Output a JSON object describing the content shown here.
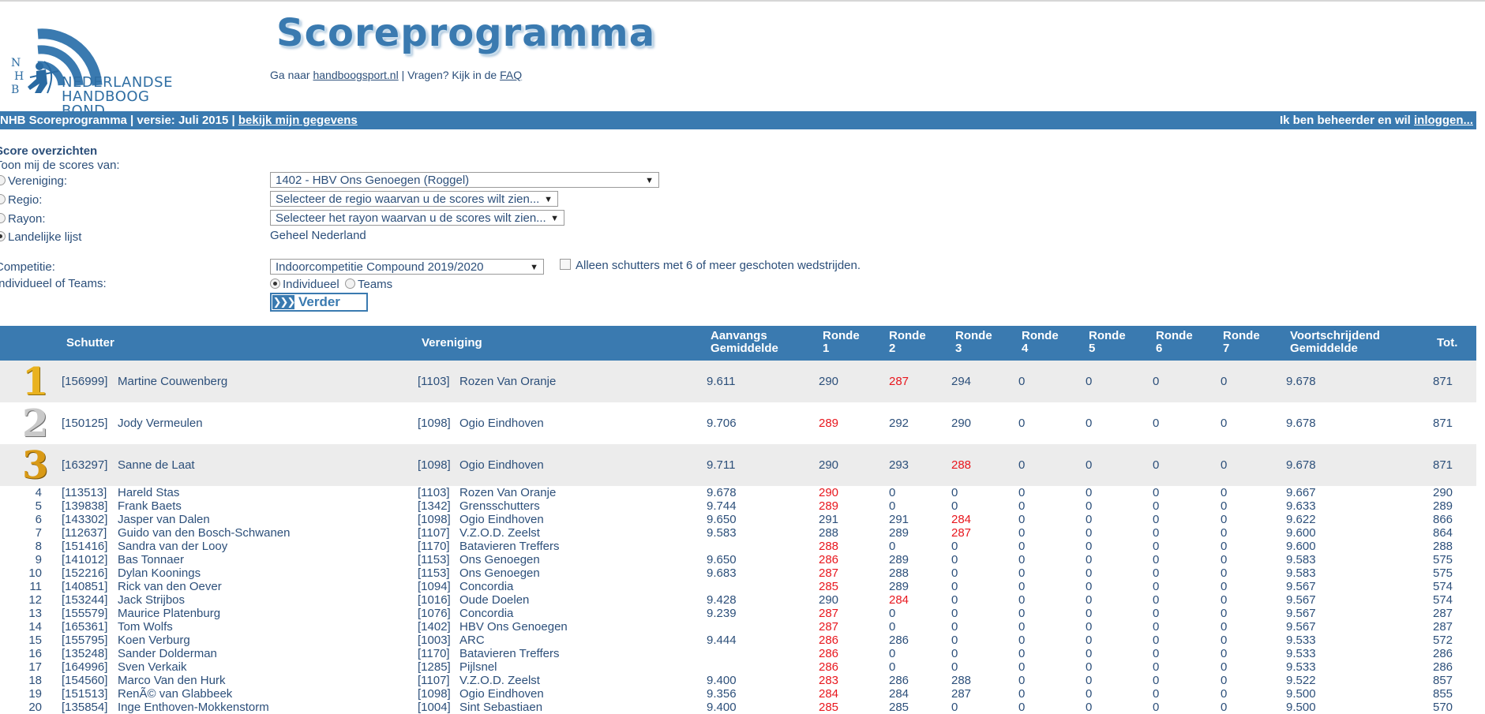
{
  "header": {
    "title": "Scoreprogramma",
    "logo_text_line1": "NEDERLANDSE",
    "logo_text_line2": "HANDBOOG BOND",
    "logo_letters": [
      "N",
      "H",
      "B"
    ],
    "goto_prefix": "Ga naar ",
    "goto_link": "handboogsport.nl",
    "goto_middle": " | Vragen? Kijk in de ",
    "faq_link": "FAQ"
  },
  "bar": {
    "left_text": "NHB Scoreprogramma | versie: Juli 2015 | ",
    "left_link": "bekijk mijn gegevens",
    "right_text": "Ik ben beheerder en wil ",
    "right_link": "inloggen..."
  },
  "form": {
    "heading": "Score overzichten",
    "toon_label": "Toon mij de scores van:",
    "vereniging_label": "Vereniging:",
    "vereniging_value": "1402 - HBV Ons Genoegen (Roggel)",
    "regio_label": "Regio:",
    "regio_placeholder": "Selecteer de regio waarvan u de scores wilt zien...",
    "rayon_label": "Rayon:",
    "rayon_placeholder": "Selecteer het rayon waarvan u de scores wilt zien...",
    "landelijk_label": "Landelijke lijst",
    "landelijk_value": "Geheel Nederland",
    "competitie_label": "Competitie:",
    "competitie_value": "Indoorcompetitie Compound 2019/2020",
    "alleen_label": "Alleen schutters met 6 of meer geschoten wedstrijden.",
    "indteam_label": "Individueel of Teams:",
    "individueel_label": "Individueel",
    "teams_label": "Teams",
    "verder_label": "Verder",
    "selected_scope": "landelijk",
    "selected_type": "individueel"
  },
  "table": {
    "headers": {
      "schutter": "Schutter",
      "vereniging": "Vereniging",
      "aanvangs1": "Aanvangs",
      "aanvangs2": "Gemiddelde",
      "ronde": "Ronde",
      "r1": "1",
      "r2": "2",
      "r3": "3",
      "r4": "4",
      "r5": "5",
      "r6": "6",
      "r7": "7",
      "voort1": "Voortschrijdend",
      "voort2": "Gemiddelde",
      "tot": "Tot."
    },
    "rows": [
      {
        "rank": "1",
        "id": "[156999]",
        "name": "Martine Couwenberg",
        "vid": "[1103]",
        "ver": "Rozen Van Oranje",
        "aanv": "9.611",
        "r": [
          "290",
          "287",
          "294",
          "0",
          "0",
          "0",
          "0"
        ],
        "red": [
          1
        ],
        "voort": "9.678",
        "tot": "871"
      },
      {
        "rank": "2",
        "id": "[150125]",
        "name": "Jody Vermeulen",
        "vid": "[1098]",
        "ver": "Ogio Eindhoven",
        "aanv": "9.706",
        "r": [
          "289",
          "292",
          "290",
          "0",
          "0",
          "0",
          "0"
        ],
        "red": [
          0
        ],
        "voort": "9.678",
        "tot": "871"
      },
      {
        "rank": "3",
        "id": "[163297]",
        "name": "Sanne de Laat",
        "vid": "[1098]",
        "ver": "Ogio Eindhoven",
        "aanv": "9.711",
        "r": [
          "290",
          "293",
          "288",
          "0",
          "0",
          "0",
          "0"
        ],
        "red": [
          2
        ],
        "voort": "9.678",
        "tot": "871"
      },
      {
        "rank": "4",
        "id": "[113513]",
        "name": "Hareld Stas",
        "vid": "[1103]",
        "ver": "Rozen Van Oranje",
        "aanv": "9.678",
        "r": [
          "290",
          "0",
          "0",
          "0",
          "0",
          "0",
          "0"
        ],
        "red": [
          0
        ],
        "voort": "9.667",
        "tot": "290"
      },
      {
        "rank": "5",
        "id": "[139838]",
        "name": "Frank Baets",
        "vid": "[1342]",
        "ver": "Grensschutters",
        "aanv": "9.744",
        "r": [
          "289",
          "0",
          "0",
          "0",
          "0",
          "0",
          "0"
        ],
        "red": [
          0
        ],
        "voort": "9.633",
        "tot": "289"
      },
      {
        "rank": "6",
        "id": "[143302]",
        "name": "Jasper van Dalen",
        "vid": "[1098]",
        "ver": "Ogio Eindhoven",
        "aanv": "9.650",
        "r": [
          "291",
          "291",
          "284",
          "0",
          "0",
          "0",
          "0"
        ],
        "red": [
          2
        ],
        "voort": "9.622",
        "tot": "866"
      },
      {
        "rank": "7",
        "id": "[112637]",
        "name": "Guido van den Bosch-Schwanen",
        "vid": "[1107]",
        "ver": "V.Z.O.D. Zeelst",
        "aanv": "9.583",
        "r": [
          "288",
          "289",
          "287",
          "0",
          "0",
          "0",
          "0"
        ],
        "red": [
          2
        ],
        "voort": "9.600",
        "tot": "864"
      },
      {
        "rank": "8",
        "id": "[151416]",
        "name": "Sandra van der Looy",
        "vid": "[1170]",
        "ver": "Batavieren Treffers",
        "aanv": "",
        "r": [
          "288",
          "0",
          "0",
          "0",
          "0",
          "0",
          "0"
        ],
        "red": [
          0
        ],
        "voort": "9.600",
        "tot": "288"
      },
      {
        "rank": "9",
        "id": "[141012]",
        "name": "Bas Tonnaer",
        "vid": "[1153]",
        "ver": "Ons Genoegen",
        "aanv": "9.650",
        "r": [
          "286",
          "289",
          "0",
          "0",
          "0",
          "0",
          "0"
        ],
        "red": [
          0
        ],
        "voort": "9.583",
        "tot": "575"
      },
      {
        "rank": "10",
        "id": "[152216]",
        "name": "Dylan Koonings",
        "vid": "[1153]",
        "ver": "Ons Genoegen",
        "aanv": "9.683",
        "r": [
          "287",
          "288",
          "0",
          "0",
          "0",
          "0",
          "0"
        ],
        "red": [
          0
        ],
        "voort": "9.583",
        "tot": "575"
      },
      {
        "rank": "11",
        "id": "[140851]",
        "name": "Rick van den Oever",
        "vid": "[1094]",
        "ver": "Concordia",
        "aanv": "",
        "r": [
          "285",
          "289",
          "0",
          "0",
          "0",
          "0",
          "0"
        ],
        "red": [
          0
        ],
        "voort": "9.567",
        "tot": "574"
      },
      {
        "rank": "12",
        "id": "[153244]",
        "name": "Jack Strijbos",
        "vid": "[1016]",
        "ver": "Oude Doelen",
        "aanv": "9.428",
        "r": [
          "290",
          "284",
          "0",
          "0",
          "0",
          "0",
          "0"
        ],
        "red": [
          1
        ],
        "voort": "9.567",
        "tot": "574"
      },
      {
        "rank": "13",
        "id": "[155579]",
        "name": "Maurice Platenburg",
        "vid": "[1076]",
        "ver": "Concordia",
        "aanv": "9.239",
        "r": [
          "287",
          "0",
          "0",
          "0",
          "0",
          "0",
          "0"
        ],
        "red": [
          0
        ],
        "voort": "9.567",
        "tot": "287"
      },
      {
        "rank": "14",
        "id": "[165361]",
        "name": "Tom Wolfs",
        "vid": "[1402]",
        "ver": "HBV Ons Genoegen",
        "aanv": "",
        "r": [
          "287",
          "0",
          "0",
          "0",
          "0",
          "0",
          "0"
        ],
        "red": [
          0
        ],
        "voort": "9.567",
        "tot": "287"
      },
      {
        "rank": "15",
        "id": "[155795]",
        "name": "Koen Verburg",
        "vid": "[1003]",
        "ver": "ARC",
        "aanv": "9.444",
        "r": [
          "286",
          "286",
          "0",
          "0",
          "0",
          "0",
          "0"
        ],
        "red": [
          0
        ],
        "voort": "9.533",
        "tot": "572"
      },
      {
        "rank": "16",
        "id": "[135248]",
        "name": "Sander Dolderman",
        "vid": "[1170]",
        "ver": "Batavieren Treffers",
        "aanv": "",
        "r": [
          "286",
          "0",
          "0",
          "0",
          "0",
          "0",
          "0"
        ],
        "red": [
          0
        ],
        "voort": "9.533",
        "tot": "286"
      },
      {
        "rank": "17",
        "id": "[164996]",
        "name": "Sven Verkaik",
        "vid": "[1285]",
        "ver": "Pijlsnel",
        "aanv": "",
        "r": [
          "286",
          "0",
          "0",
          "0",
          "0",
          "0",
          "0"
        ],
        "red": [
          0
        ],
        "voort": "9.533",
        "tot": "286"
      },
      {
        "rank": "18",
        "id": "[154560]",
        "name": "Marco Van den Hurk",
        "vid": "[1107]",
        "ver": "V.Z.O.D. Zeelst",
        "aanv": "9.400",
        "r": [
          "283",
          "286",
          "288",
          "0",
          "0",
          "0",
          "0"
        ],
        "red": [
          0
        ],
        "voort": "9.522",
        "tot": "857"
      },
      {
        "rank": "19",
        "id": "[151513]",
        "name": "RenÃ© van Glabbeek",
        "vid": "[1098]",
        "ver": "Ogio Eindhoven",
        "aanv": "9.356",
        "r": [
          "284",
          "284",
          "287",
          "0",
          "0",
          "0",
          "0"
        ],
        "red": [
          0
        ],
        "voort": "9.500",
        "tot": "855"
      },
      {
        "rank": "20",
        "id": "[135854]",
        "name": "Inge Enthoven-Mokkenstorm",
        "vid": "[1004]",
        "ver": "Sint Sebastiaen",
        "aanv": "9.400",
        "r": [
          "285",
          "285",
          "0",
          "0",
          "0",
          "0",
          "0"
        ],
        "red": [
          0
        ],
        "voort": "9.500",
        "tot": "570"
      }
    ]
  },
  "colors": {
    "brand_blue": "#3a7ab0",
    "text": "#2c4f7a",
    "low_score_red": "#e8161d",
    "row_shade": "#ececec"
  }
}
